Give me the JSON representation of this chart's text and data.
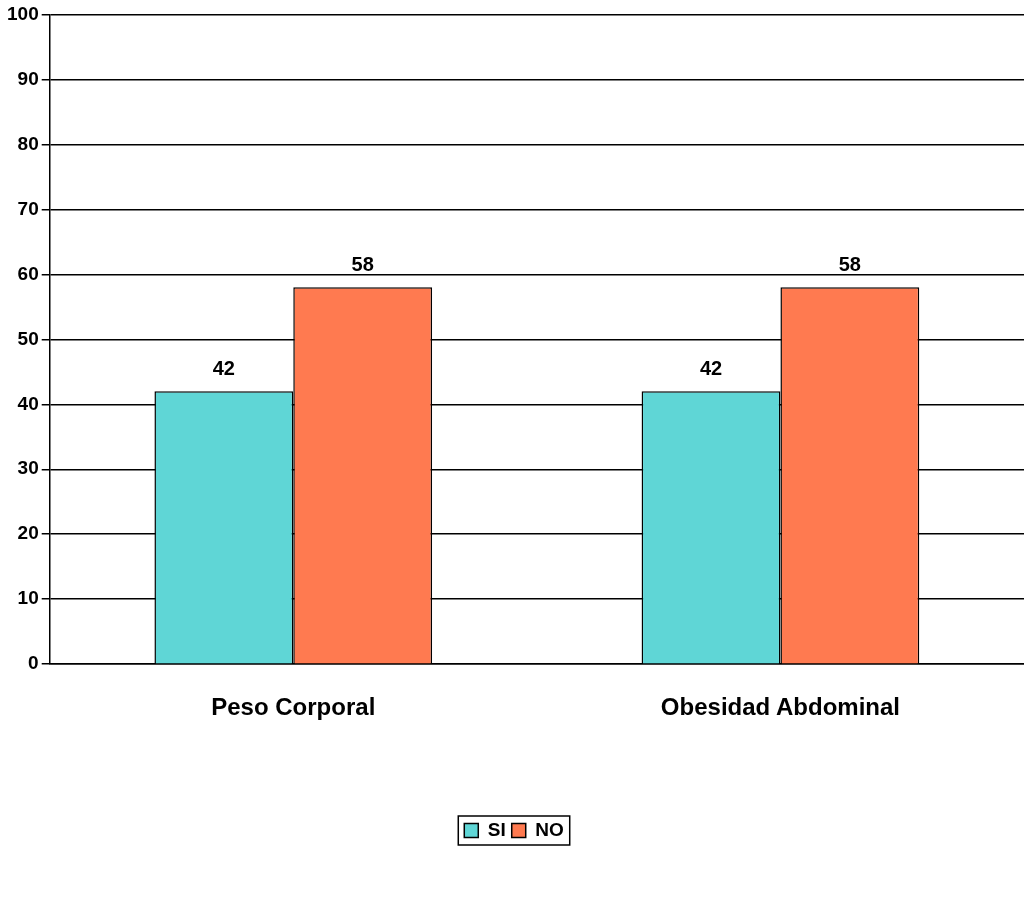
{
  "chart_data": {
    "type": "bar",
    "categories": [
      "Peso Corporal",
      "Obesidad Abdominal"
    ],
    "series": [
      {
        "name": "SI",
        "color": "#5fd6d6",
        "values": [
          42,
          42
        ]
      },
      {
        "name": "NO",
        "color": "#ff7a50",
        "values": [
          58,
          58
        ]
      }
    ],
    "ylim": [
      0,
      100
    ],
    "yticks": [
      0,
      10,
      20,
      30,
      40,
      50,
      60,
      70,
      80,
      90,
      100
    ],
    "grid": "y",
    "legend": "bottom",
    "data_labels": true
  }
}
